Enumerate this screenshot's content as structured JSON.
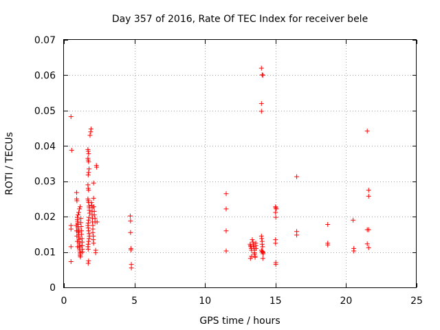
{
  "chart_data": {
    "type": "scatter",
    "title": "Day 357 of 2016, Rate Of TEC Index for receiver bele",
    "xlabel": "GPS time / hours",
    "ylabel": "ROTI / TECUs",
    "xlim": [
      0,
      25
    ],
    "ylim": [
      0,
      0.07
    ],
    "xticks": [
      0,
      5,
      10,
      15,
      20,
      25
    ],
    "xtick_labels": [
      "0",
      "5",
      "10",
      "15",
      "20",
      "25"
    ],
    "yticks": [
      0,
      0.01,
      0.02,
      0.03,
      0.04,
      0.05,
      0.06,
      0.07
    ],
    "ytick_labels": [
      "0",
      "0.01",
      "0.02",
      "0.03",
      "0.04",
      "0.05",
      "0.06",
      "0.07"
    ],
    "grid": true,
    "marker": "+",
    "color": "#ff0000",
    "series": [
      {
        "name": "ROTI",
        "points": [
          [
            0.5,
            0.0483
          ],
          [
            0.55,
            0.0388
          ],
          [
            0.5,
            0.0175
          ],
          [
            0.5,
            0.0165
          ],
          [
            0.5,
            0.0115
          ],
          [
            0.5,
            0.0073
          ],
          [
            0.9,
            0.0268
          ],
          [
            0.9,
            0.025
          ],
          [
            0.92,
            0.0245
          ],
          [
            0.95,
            0.0198
          ],
          [
            0.95,
            0.0192
          ],
          [
            0.97,
            0.0187
          ],
          [
            0.98,
            0.0182
          ],
          [
            1.0,
            0.0178
          ],
          [
            1.0,
            0.0172
          ],
          [
            1.0,
            0.0168
          ],
          [
            1.02,
            0.0163
          ],
          [
            1.02,
            0.0158
          ],
          [
            1.03,
            0.0155
          ],
          [
            1.05,
            0.015
          ],
          [
            1.05,
            0.0145
          ],
          [
            1.05,
            0.014
          ],
          [
            1.07,
            0.0135
          ],
          [
            1.07,
            0.013
          ],
          [
            1.08,
            0.0125
          ],
          [
            1.1,
            0.012
          ],
          [
            1.1,
            0.0116
          ],
          [
            1.1,
            0.0112
          ],
          [
            1.12,
            0.0108
          ],
          [
            1.12,
            0.0103
          ],
          [
            1.15,
            0.0098
          ],
          [
            1.15,
            0.0094
          ],
          [
            1.15,
            0.009
          ],
          [
            1.17,
            0.0086
          ],
          [
            1.0,
            0.0205
          ],
          [
            1.05,
            0.0212
          ],
          [
            1.1,
            0.0222
          ],
          [
            1.15,
            0.0228
          ],
          [
            0.88,
            0.0175
          ],
          [
            0.9,
            0.016
          ],
          [
            0.92,
            0.0145
          ],
          [
            0.95,
            0.013
          ],
          [
            0.97,
            0.0115
          ],
          [
            1.2,
            0.0195
          ],
          [
            1.2,
            0.0183
          ],
          [
            1.22,
            0.0172
          ],
          [
            1.25,
            0.016
          ],
          [
            1.25,
            0.015
          ],
          [
            1.28,
            0.0138
          ],
          [
            1.3,
            0.0128
          ],
          [
            1.3,
            0.0118
          ],
          [
            1.3,
            0.0108
          ],
          [
            1.32,
            0.01
          ],
          [
            1.7,
            0.039
          ],
          [
            1.72,
            0.0385
          ],
          [
            1.75,
            0.0378
          ],
          [
            1.7,
            0.0365
          ],
          [
            1.72,
            0.036
          ],
          [
            1.75,
            0.0355
          ],
          [
            1.78,
            0.0335
          ],
          [
            1.75,
            0.0325
          ],
          [
            1.72,
            0.0318
          ],
          [
            1.7,
            0.029
          ],
          [
            1.72,
            0.028
          ],
          [
            1.75,
            0.0275
          ],
          [
            1.7,
            0.025
          ],
          [
            1.72,
            0.0245
          ],
          [
            1.75,
            0.024
          ],
          [
            1.78,
            0.023
          ],
          [
            1.8,
            0.0225
          ],
          [
            1.8,
            0.0218
          ],
          [
            1.82,
            0.021
          ],
          [
            1.78,
            0.0198
          ],
          [
            1.75,
            0.019
          ],
          [
            1.72,
            0.0182
          ],
          [
            1.7,
            0.0175
          ],
          [
            1.72,
            0.0168
          ],
          [
            1.75,
            0.016
          ],
          [
            1.78,
            0.0152
          ],
          [
            1.8,
            0.0145
          ],
          [
            1.78,
            0.0138
          ],
          [
            1.75,
            0.013
          ],
          [
            1.72,
            0.0122
          ],
          [
            1.7,
            0.0115
          ],
          [
            1.72,
            0.0108
          ],
          [
            1.75,
            0.0075
          ],
          [
            1.72,
            0.0068
          ],
          [
            1.85,
            0.043
          ],
          [
            1.9,
            0.044
          ],
          [
            1.92,
            0.0448
          ],
          [
            1.95,
            0.024
          ],
          [
            1.98,
            0.0232
          ],
          [
            2.0,
            0.0225
          ],
          [
            2.0,
            0.0215
          ],
          [
            2.0,
            0.0205
          ],
          [
            2.02,
            0.0195
          ],
          [
            2.02,
            0.0185
          ],
          [
            2.05,
            0.0175
          ],
          [
            2.05,
            0.0165
          ],
          [
            2.05,
            0.0155
          ],
          [
            2.08,
            0.0145
          ],
          [
            2.08,
            0.0135
          ],
          [
            2.1,
            0.0125
          ],
          [
            2.1,
            0.0295
          ],
          [
            2.1,
            0.0252
          ],
          [
            2.12,
            0.0228
          ],
          [
            2.15,
            0.0215
          ],
          [
            2.15,
            0.0205
          ],
          [
            2.2,
            0.0195
          ],
          [
            2.2,
            0.0185
          ],
          [
            2.25,
            0.0105
          ],
          [
            2.25,
            0.0098
          ],
          [
            2.3,
            0.0345
          ],
          [
            2.32,
            0.034
          ],
          [
            2.35,
            0.0185
          ],
          [
            4.7,
            0.0202
          ],
          [
            4.72,
            0.0188
          ],
          [
            4.72,
            0.0155
          ],
          [
            4.75,
            0.011
          ],
          [
            4.75,
            0.0106
          ],
          [
            4.78,
            0.0065
          ],
          [
            4.78,
            0.0055
          ],
          [
            11.5,
            0.0265
          ],
          [
            11.5,
            0.0222
          ],
          [
            11.5,
            0.016
          ],
          [
            11.5,
            0.0103
          ],
          [
            13.2,
            0.0122
          ],
          [
            13.22,
            0.0118
          ],
          [
            13.25,
            0.0115
          ],
          [
            13.28,
            0.011
          ],
          [
            13.3,
            0.0105
          ],
          [
            13.3,
            0.0088
          ],
          [
            13.22,
            0.0082
          ],
          [
            13.35,
            0.0135
          ],
          [
            13.4,
            0.0128
          ],
          [
            13.42,
            0.0122
          ],
          [
            13.45,
            0.0115
          ],
          [
            13.48,
            0.011
          ],
          [
            13.5,
            0.0105
          ],
          [
            13.5,
            0.0098
          ],
          [
            13.52,
            0.0094
          ],
          [
            13.55,
            0.0088
          ],
          [
            13.55,
            0.0085
          ],
          [
            13.6,
            0.0125
          ],
          [
            13.6,
            0.0118
          ],
          [
            13.62,
            0.011
          ],
          [
            14.0,
            0.062
          ],
          [
            14.05,
            0.0601
          ],
          [
            14.1,
            0.06
          ],
          [
            14.0,
            0.052
          ],
          [
            14.0,
            0.0498
          ],
          [
            14.0,
            0.0145
          ],
          [
            14.02,
            0.0138
          ],
          [
            14.05,
            0.013
          ],
          [
            14.05,
            0.0122
          ],
          [
            14.08,
            0.0115
          ],
          [
            14.0,
            0.0105
          ],
          [
            14.05,
            0.0102
          ],
          [
            14.1,
            0.01
          ],
          [
            14.1,
            0.0098
          ],
          [
            14.12,
            0.0095
          ],
          [
            14.1,
            0.0082
          ],
          [
            15.0,
            0.0228
          ],
          [
            15.02,
            0.0225
          ],
          [
            15.05,
            0.0222
          ],
          [
            15.0,
            0.0212
          ],
          [
            15.02,
            0.0198
          ],
          [
            15.0,
            0.0135
          ],
          [
            15.0,
            0.0125
          ],
          [
            15.02,
            0.007
          ],
          [
            15.02,
            0.0065
          ],
          [
            16.5,
            0.0313
          ],
          [
            16.5,
            0.0158
          ],
          [
            16.5,
            0.0148
          ],
          [
            18.7,
            0.0178
          ],
          [
            18.7,
            0.0125
          ],
          [
            18.7,
            0.012
          ],
          [
            20.5,
            0.019
          ],
          [
            20.55,
            0.011
          ],
          [
            20.55,
            0.0103
          ],
          [
            21.5,
            0.0442
          ],
          [
            21.6,
            0.0275
          ],
          [
            21.6,
            0.0258
          ],
          [
            21.5,
            0.0163
          ],
          [
            21.6,
            0.0163
          ],
          [
            21.5,
            0.0123
          ],
          [
            21.6,
            0.0112
          ]
        ]
      }
    ]
  }
}
